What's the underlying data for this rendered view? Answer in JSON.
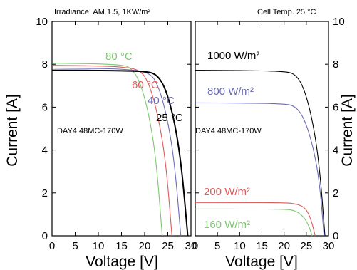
{
  "figure": {
    "y_axis_label": "Current [A]",
    "x_axis_label": "Voltage [V]"
  },
  "chart_data": [
    {
      "type": "line",
      "title": "Irradiance: AM 1.5, 1KW/m²",
      "xlabel": "Voltage [V]",
      "ylabel": "Current [A]",
      "xlim": [
        0,
        30
      ],
      "ylim": [
        0,
        10
      ],
      "xticks": [
        0,
        5,
        10,
        15,
        20,
        25,
        30
      ],
      "yticks": [
        0,
        2,
        4,
        6,
        8,
        10
      ],
      "grid": false,
      "annotation": "DAY4 48MC-170W",
      "series": [
        {
          "name": "80 °C",
          "color": "#7dc76f",
          "isc": 8.05,
          "voc": 23.8,
          "kink": 17.0,
          "width": 1.1,
          "x": [
            0,
            5,
            10,
            15,
            17,
            19,
            21,
            22.5,
            23.8
          ],
          "y": [
            8.05,
            8.04,
            8.02,
            7.97,
            7.85,
            7.2,
            5.6,
            3.5,
            0
          ]
        },
        {
          "name": "60 °C",
          "color": "#e05a5a",
          "isc": 7.95,
          "voc": 25.9,
          "kink": 19.0,
          "width": 1.1,
          "x": [
            0,
            5,
            10,
            15,
            19,
            21,
            23,
            24.6,
            25.9
          ],
          "y": [
            7.95,
            7.94,
            7.92,
            7.88,
            7.75,
            7.1,
            5.5,
            3.4,
            0
          ]
        },
        {
          "name": "40 °C",
          "color": "#6b6bb5",
          "isc": 7.82,
          "voc": 27.8,
          "kink": 21.0,
          "width": 1.1,
          "x": [
            0,
            5,
            10,
            15,
            21,
            23,
            25,
            26.5,
            27.8
          ],
          "y": [
            7.82,
            7.81,
            7.8,
            7.78,
            7.65,
            7.0,
            5.4,
            3.3,
            0
          ]
        },
        {
          "name": "25 °C",
          "color": "#000000",
          "isc": 7.72,
          "voc": 29.3,
          "kink": 22.5,
          "width": 2.0,
          "x": [
            0,
            5,
            10,
            15,
            20,
            22.5,
            24.5,
            26.5,
            28,
            29.3
          ],
          "y": [
            7.72,
            7.72,
            7.71,
            7.7,
            7.67,
            7.55,
            6.9,
            5.3,
            3.2,
            0
          ]
        }
      ],
      "labels": [
        "80 °C",
        "60 °C",
        "40 °C",
        "25 °C"
      ]
    },
    {
      "type": "line",
      "title": "Cell Temp. 25 °C",
      "xlabel": "Voltage [V]",
      "ylabel": "Current [A]",
      "xlim": [
        0,
        30
      ],
      "ylim": [
        0,
        10
      ],
      "xticks": [
        0,
        5,
        10,
        15,
        20,
        25,
        30
      ],
      "yticks": [
        0,
        2,
        4,
        6,
        8,
        10
      ],
      "grid": false,
      "annotation": "DAY4 48MC-170W",
      "series": [
        {
          "name": "1000 W/m²",
          "color": "#000000",
          "width": 1.1,
          "x": [
            0,
            10,
            20,
            22.5,
            24.5,
            26.5,
            28,
            29.2
          ],
          "y": [
            7.72,
            7.71,
            7.67,
            7.55,
            6.9,
            5.3,
            3.2,
            0
          ]
        },
        {
          "name": "800 W/m²",
          "color": "#6b6bb5",
          "width": 1.1,
          "x": [
            0,
            10,
            20,
            22.5,
            24.5,
            26.5,
            28,
            29.0
          ],
          "y": [
            6.2,
            6.19,
            6.16,
            6.05,
            5.5,
            4.2,
            2.5,
            0
          ]
        },
        {
          "name": "200 W/m²",
          "color": "#e05a5a",
          "width": 1.1,
          "x": [
            0,
            10,
            20,
            22.5,
            24.5,
            25.5,
            26.3,
            27.0
          ],
          "y": [
            1.55,
            1.55,
            1.54,
            1.5,
            1.35,
            1.05,
            0.6,
            0
          ]
        },
        {
          "name": "160 W/m²",
          "color": "#7dc76f",
          "width": 1.1,
          "x": [
            0,
            10,
            20,
            22.0,
            23.5,
            24.7,
            25.6,
            26.3
          ],
          "y": [
            1.25,
            1.25,
            1.24,
            1.2,
            1.05,
            0.8,
            0.45,
            0
          ]
        }
      ],
      "labels": [
        "1000 W/m²",
        "800 W/m²",
        "200 W/m²",
        "160 W/m²"
      ]
    }
  ]
}
